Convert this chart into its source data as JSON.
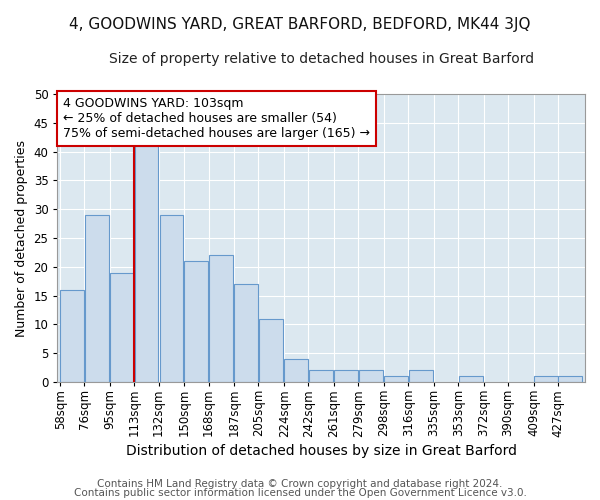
{
  "title1": "4, GOODWINS YARD, GREAT BARFORD, BEDFORD, MK44 3JQ",
  "title2": "Size of property relative to detached houses in Great Barford",
  "xlabel": "Distribution of detached houses by size in Great Barford",
  "ylabel": "Number of detached properties",
  "footer1": "Contains HM Land Registry data © Crown copyright and database right 2024.",
  "footer2": "Contains public sector information licensed under the Open Government Licence v3.0.",
  "categories": [
    "58sqm",
    "76sqm",
    "95sqm",
    "113sqm",
    "132sqm",
    "150sqm",
    "168sqm",
    "187sqm",
    "205sqm",
    "224sqm",
    "242sqm",
    "261sqm",
    "279sqm",
    "298sqm",
    "316sqm",
    "335sqm",
    "353sqm",
    "372sqm",
    "390sqm",
    "409sqm",
    "427sqm"
  ],
  "values": [
    16,
    29,
    19,
    41,
    29,
    21,
    22,
    17,
    11,
    4,
    2,
    2,
    2,
    1,
    2,
    0,
    1,
    0,
    0,
    1,
    1
  ],
  "bar_color": "#ccdcec",
  "bar_edge_color": "#6699cc",
  "vline_color": "#cc0000",
  "annotation_text": "4 GOODWINS YARD: 103sqm\n← 25% of detached houses are smaller (54)\n75% of semi-detached houses are larger (165) →",
  "annotation_box_color": "#ffffff",
  "annotation_box_edge": "#cc0000",
  "ylim": [
    0,
    50
  ],
  "yticks": [
    0,
    5,
    10,
    15,
    20,
    25,
    30,
    35,
    40,
    45,
    50
  ],
  "background_color": "#dce8f0",
  "grid_color": "#ffffff",
  "fig_bg_color": "#ffffff",
  "title1_fontsize": 11,
  "title2_fontsize": 10,
  "xlabel_fontsize": 10,
  "ylabel_fontsize": 9,
  "tick_fontsize": 8.5,
  "footer_fontsize": 7.5,
  "ann_fontsize": 9
}
